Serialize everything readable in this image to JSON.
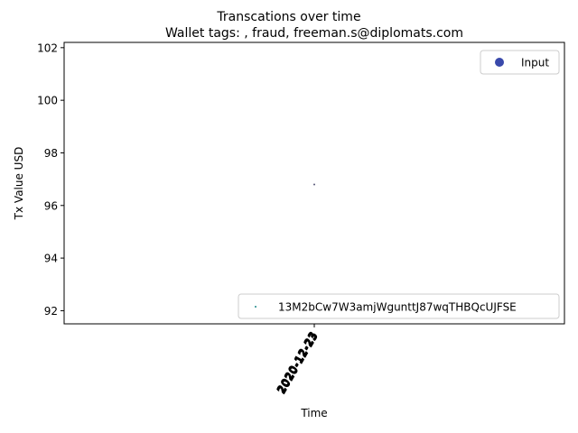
{
  "chart_data": {
    "type": "scatter",
    "suptitle": "Transcations over time",
    "title": "Wallet tags: , fraud, freeman.s@diplomats.com",
    "xlabel": "Time",
    "ylabel": "Tx Value USD",
    "ylim": [
      91.5,
      102.2
    ],
    "y_ticks": [
      92,
      94,
      96,
      98,
      100,
      102
    ],
    "x_tick_labels": [
      "2020-12-23",
      "2020-12-23",
      "2020-12-23"
    ],
    "series": [
      {
        "name": "13M2bCw7W3amjWgunttJ87wqTHBQcUJFSE",
        "color": "#1f8a8a",
        "points": [
          {
            "x": "2020-12-23",
            "y": 96.8
          }
        ]
      }
    ],
    "legend_top": {
      "placement": "top-right",
      "label": "Input",
      "color": "#3949ab"
    },
    "legend_bottom": {
      "placement": "bottom-right"
    },
    "grid": false
  }
}
